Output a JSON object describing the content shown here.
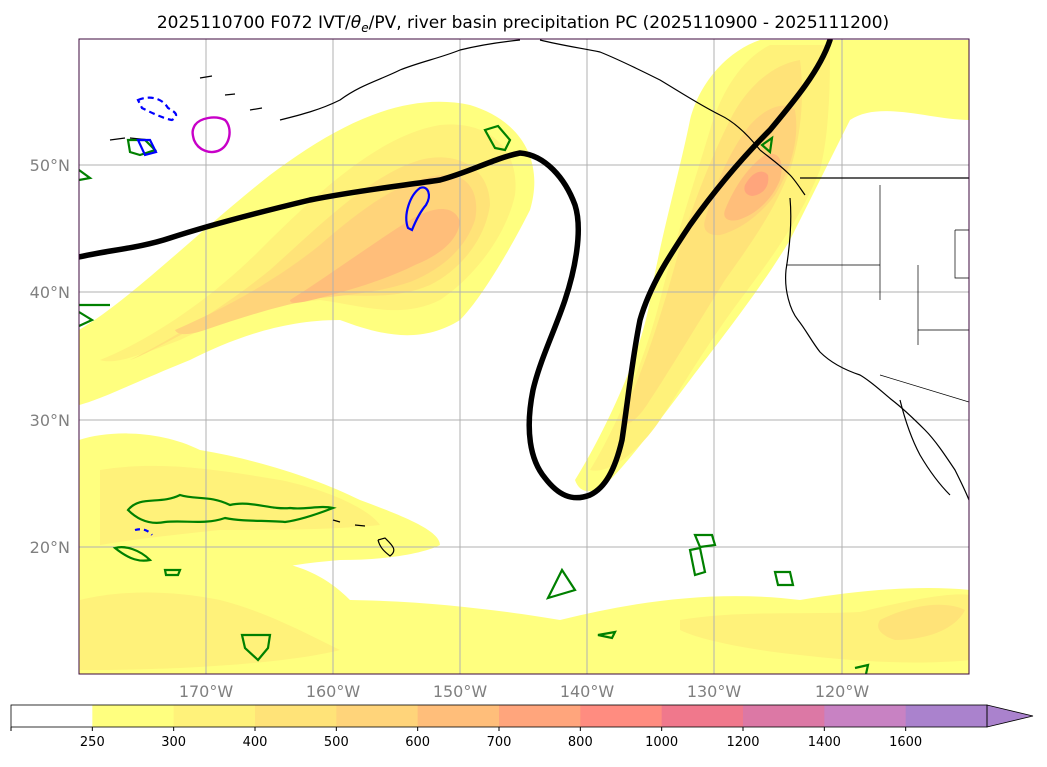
{
  "title": {
    "run": "2025110700",
    "forecast": "F072",
    "fields_prefix": "IVT/",
    "theta_symbol": "θ",
    "theta_subscript": "e",
    "fields_suffix": "/PV, river basin precipitation PC",
    "valid_range": "(2025110900 - 2025111200)"
  },
  "map": {
    "lon_range": [
      180,
      110
    ],
    "lat_range": [
      10,
      60
    ],
    "lat_labels": [
      "20°N",
      "30°N",
      "40°N",
      "50°N"
    ],
    "lon_labels": [
      "170°W",
      "160°W",
      "150°W",
      "140°W",
      "130°W",
      "120°W"
    ]
  },
  "colorbar": {
    "ticks": [
      "250",
      "300",
      "400",
      "500",
      "600",
      "700",
      "800",
      "1000",
      "1200",
      "1400",
      "1600"
    ],
    "colors": [
      "#ffffff",
      "#ffff7f",
      "#fff27a",
      "#ffe378",
      "#ffd47a",
      "#ffbe7a",
      "#ffa57c",
      "#ff8c80",
      "#f0788c",
      "#dc78a5",
      "#c882c3",
      "#aa82cd"
    ],
    "extend": "max"
  },
  "legend_colors": {
    "pv_contour": "#000000",
    "green_contour": "#008000",
    "blue_contour": "#0000ff",
    "magenta_contour": "#c800c8",
    "coastline": "#000000"
  }
}
